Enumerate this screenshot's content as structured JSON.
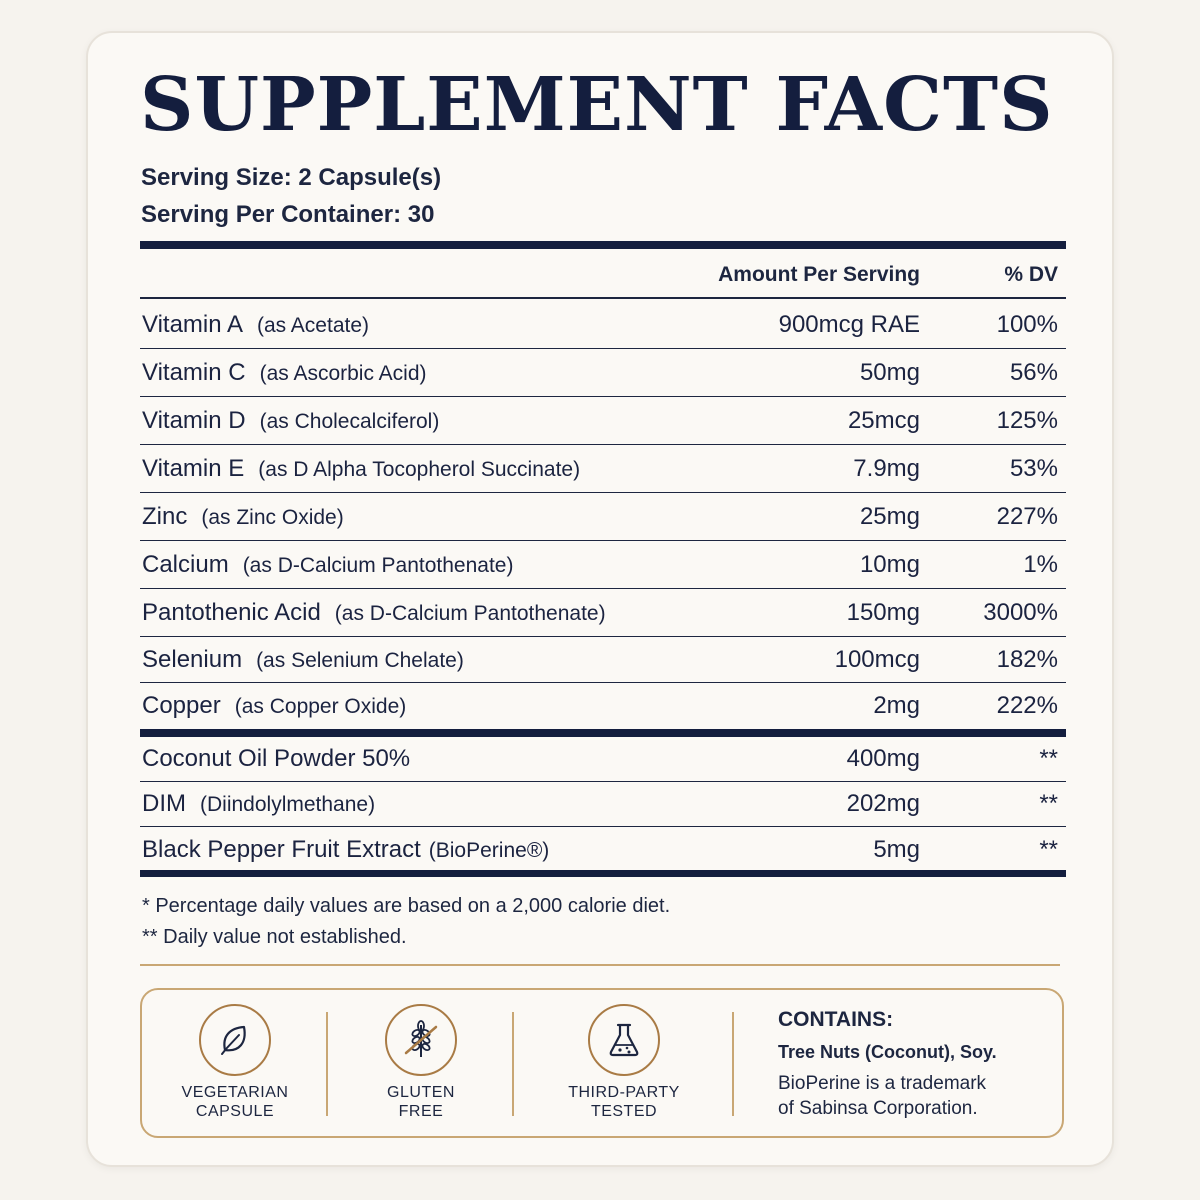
{
  "title": "SUPPLEMENT FACTS",
  "serving": {
    "size": "Serving Size: 2 Capsule(s)",
    "per_container": "Serving Per Container: 30"
  },
  "table": {
    "header_amount": "Amount Per Serving",
    "header_dv": "% DV",
    "vitamins": [
      {
        "name": "Vitamin A",
        "source": "(as Acetate)",
        "amount": "900mcg RAE",
        "dv": "100%"
      },
      {
        "name": "Vitamin C",
        "source": "(as Ascorbic Acid)",
        "amount": "50mg",
        "dv": "56%"
      },
      {
        "name": "Vitamin D",
        "source": "(as Cholecalciferol)",
        "amount": "25mcg",
        "dv": "125%"
      },
      {
        "name": "Vitamin E",
        "source": "(as D Alpha Tocopherol Succinate)",
        "amount": "7.9mg",
        "dv": "53%"
      },
      {
        "name": "Zinc",
        "source": "(as Zinc Oxide)",
        "amount": "25mg",
        "dv": "227%"
      },
      {
        "name": "Calcium",
        "source": "(as D-Calcium Pantothenate)",
        "amount": "10mg",
        "dv": "1%"
      },
      {
        "name": "Pantothenic Acid",
        "source": "(as D-Calcium Pantothenate)",
        "amount": "150mg",
        "dv": "3000%"
      },
      {
        "name": "Selenium",
        "source": "(as Selenium Chelate)",
        "amount": "100mcg",
        "dv": "182%"
      },
      {
        "name": "Copper",
        "source": "(as Copper Oxide)",
        "amount": "2mg",
        "dv": "222%"
      }
    ],
    "blend": [
      {
        "name": "Coconut Oil Powder 50%",
        "source": "",
        "amount": "400mg",
        "dv": "**"
      },
      {
        "name": "DIM",
        "source": "(Diindolylmethane)",
        "amount": "202mg",
        "dv": "**"
      },
      {
        "name": "Black Pepper Fruit Extract",
        "source": "(BioPerine®)",
        "amount": "5mg",
        "dv": "**"
      }
    ]
  },
  "footnotes": {
    "daily_values": "* Percentage daily values are based on a 2,000 calorie diet.",
    "not_established": "** Daily value not established."
  },
  "badges": [
    {
      "icon": "leaf-icon",
      "line1": "VEGETARIAN",
      "line2": "CAPSULE"
    },
    {
      "icon": "no-wheat-icon",
      "line1": "GLUTEN",
      "line2": "FREE"
    },
    {
      "icon": "flask-icon",
      "line1": "THIRD-PARTY",
      "line2": "TESTED"
    }
  ],
  "contains": {
    "title": "CONTAINS:",
    "allergens": "Tree Nuts (Coconut), Soy.",
    "note_line1": "BioPerine is a trademark",
    "note_line2": "of Sabinsa Corporation."
  },
  "colors": {
    "navy": "#141e3e",
    "gold": "#c9a774",
    "icon_brown": "#a97b45",
    "card": "#fbf9f5",
    "background": "#f6f3ee"
  }
}
